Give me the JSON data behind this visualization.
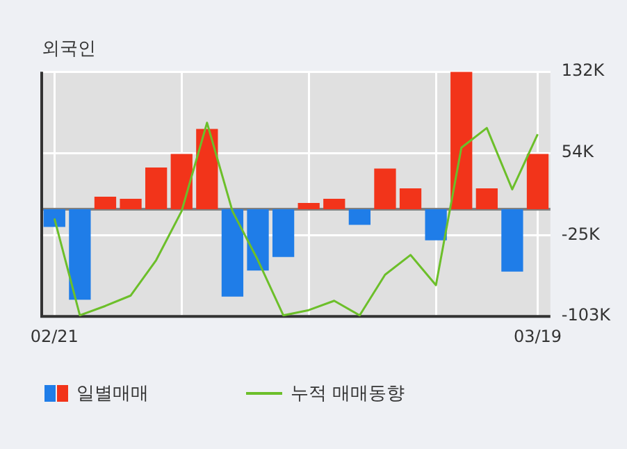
{
  "chart_data": {
    "type": "bar",
    "title": "외국인",
    "categories": [
      "02/21",
      null,
      null,
      null,
      null,
      null,
      null,
      null,
      null,
      null,
      null,
      null,
      null,
      null,
      null,
      null,
      null,
      null,
      null,
      "03/19"
    ],
    "series": [
      {
        "name": "일별매매",
        "colors": [
          "#1f7de8",
          "#1f7de8",
          "#f2341a",
          "#f2341a",
          "#f2341a",
          "#f2341a",
          "#f2341a",
          "#1f7de8",
          "#1f7de8",
          "#1f7de8",
          "#f2341a",
          "#f2341a",
          "#1f7de8",
          "#f2341a",
          "#f2341a",
          "#1f7de8",
          "#f2341a",
          "#f2341a",
          "#1f7de8",
          "#f2341a"
        ],
        "values": [
          -17000,
          -87000,
          12000,
          10000,
          40000,
          53000,
          77000,
          -84000,
          -59000,
          -46000,
          6000,
          10000,
          -15000,
          39000,
          20000,
          -30000,
          132000,
          20000,
          -60000,
          53000
        ]
      },
      {
        "name": "누적 매매동향",
        "type": "line",
        "color": "#6cbf2a",
        "values": [
          -9000,
          -102000,
          -93000,
          -83000,
          -49000,
          -2000,
          83000,
          -2000,
          -49000,
          -102000,
          -97000,
          -88000,
          -102000,
          -63000,
          -44000,
          -73000,
          59000,
          78000,
          19000,
          72000
        ]
      }
    ],
    "ylim": [
      -103000,
      132000
    ],
    "yticks": [
      {
        "value": 132000,
        "label": "132K"
      },
      {
        "value": 54000,
        "label": "54K"
      },
      {
        "value": -25000,
        "label": "-25K"
      },
      {
        "value": -103000,
        "label": "-103K"
      }
    ],
    "grid": true,
    "legend": "bottom"
  }
}
